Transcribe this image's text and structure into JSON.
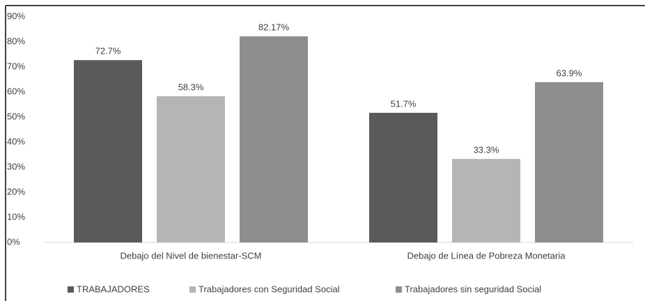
{
  "chart_data": {
    "type": "bar",
    "categories": [
      "Debajo del Nivel de bienestar-SCM",
      "Debajo de Línea de Pobreza Monetaria"
    ],
    "series": [
      {
        "name": "TRABAJADORES",
        "color": "#5a5a5a",
        "values": [
          72.7,
          51.7
        ],
        "value_labels": [
          "72.7%",
          "51.7%"
        ]
      },
      {
        "name": "Trabajadores con Seguridad Social",
        "color": "#b5b5b5",
        "values": [
          58.3,
          33.3
        ],
        "value_labels": [
          "58.3%",
          "33.3%"
        ]
      },
      {
        "name": "Trabajadores sin seguridad Social",
        "color": "#8e8e8e",
        "values": [
          82.17,
          63.9
        ],
        "value_labels": [
          "82.17%",
          "63.9%"
        ]
      }
    ],
    "ylim": [
      0,
      90
    ],
    "yticks": [
      {
        "value": 0,
        "label": "0%"
      },
      {
        "value": 10,
        "label": "10%"
      },
      {
        "value": 20,
        "label": "20%"
      },
      {
        "value": 30,
        "label": "30%"
      },
      {
        "value": 40,
        "label": "40%"
      },
      {
        "value": 50,
        "label": "50%"
      },
      {
        "value": 60,
        "label": "60%"
      },
      {
        "value": 70,
        "label": "70%"
      },
      {
        "value": 80,
        "label": "80%"
      },
      {
        "value": 90,
        "label": "90%"
      }
    ],
    "grid": false,
    "legend": "bottom"
  }
}
